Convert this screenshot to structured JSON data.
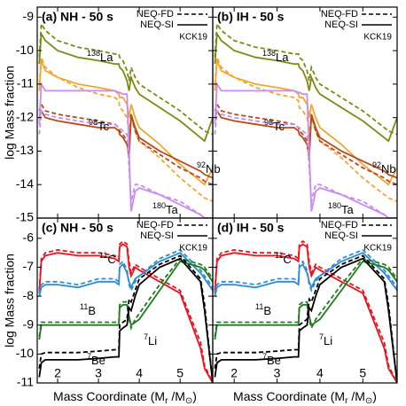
{
  "chart_data": [
    {
      "type": "line",
      "title": "(a) NH - 50 s",
      "ylabel": "log Mass fraction",
      "note": "KCK19",
      "legend": [
        {
          "name": "NEQ-FD",
          "dashed": true
        },
        {
          "name": "NEQ-SI",
          "dashed": false
        }
      ],
      "x": [
        1.55,
        1.6,
        1.7,
        2.0,
        2.5,
        3.0,
        3.4,
        3.5,
        3.52,
        3.6,
        3.7,
        3.75,
        3.8,
        3.9,
        4.0,
        4.5,
        5.0,
        5.5,
        5.6,
        5.8
      ],
      "xlim": [
        1.5,
        5.8
      ],
      "xticks": [
        2,
        3,
        4,
        5
      ],
      "ylim": [
        -15,
        -8.7
      ],
      "yticks": [
        -9,
        -10,
        -11,
        -12,
        -13,
        -14,
        -15
      ],
      "series": [
        {
          "isotope": "138",
          "element": "La",
          "color": "#7d8a14",
          "fd": [
            -10.2,
            -9.2,
            -9.4,
            -9.7,
            -9.9,
            -10.0,
            -10.1,
            -10.1,
            -10.2,
            -10.3,
            -10.6,
            -10.9,
            -10.5,
            -10.8,
            -11.0,
            -11.4,
            -11.8,
            -12.3,
            -12.4,
            -12.5
          ],
          "si": [
            -10.4,
            -9.5,
            -9.7,
            -10.0,
            -10.2,
            -10.3,
            -10.4,
            -10.4,
            -10.5,
            -10.6,
            -10.9,
            -11.2,
            -10.8,
            -11.1,
            -11.3,
            -11.7,
            -12.1,
            -12.6,
            -12.7,
            -12.0
          ]
        },
        {
          "isotope": "92",
          "element": "Nb",
          "color": "#f5a630",
          "fd": [
            -11.0,
            -10.2,
            -10.5,
            -10.8,
            -11.1,
            -11.3,
            -11.4,
            -11.5,
            -11.7,
            -11.8,
            -12.0,
            -12.4,
            -12.0,
            -12.4,
            -12.7,
            -13.2,
            -13.8,
            -14.3,
            -14.4,
            -14.5
          ],
          "si": [
            -11.2,
            -10.3,
            -10.6,
            -10.8,
            -11.0,
            -11.1,
            -11.2,
            -11.3,
            -11.4,
            -11.4,
            -11.6,
            -12.0,
            -11.6,
            -12.0,
            -12.3,
            -12.8,
            -13.4,
            -13.9,
            -14.0,
            -13.5
          ]
        },
        {
          "isotope": "98",
          "element": "Tc",
          "color": "#b84a1c",
          "fd": [
            -11.8,
            -11.6,
            -11.8,
            -11.9,
            -12.0,
            -12.1,
            -12.2,
            -12.3,
            -12.4,
            -12.5,
            -12.7,
            -13.1,
            -11.9,
            -12.4,
            -12.7,
            -13.1,
            -13.5,
            -13.8,
            -13.9,
            -14.0
          ],
          "si": [
            -12.0,
            -11.8,
            -12.0,
            -12.1,
            -12.2,
            -12.3,
            -12.3,
            -12.4,
            -12.5,
            -12.6,
            -12.8,
            -13.2,
            -11.9,
            -12.3,
            -12.6,
            -13.0,
            -13.3,
            -13.6,
            -13.7,
            -13.8
          ]
        },
        {
          "isotope": "180",
          "element": "Ta",
          "color": "#c88cf0",
          "fd": [
            -12.5,
            -11.8,
            -11.9,
            -12.0,
            -12.1,
            -12.2,
            -12.2,
            -12.3,
            -12.3,
            -12.4,
            -12.5,
            -13.5,
            -14.5,
            -14.0,
            -14.0,
            -14.3,
            -14.5,
            -14.9,
            -15.0,
            -15.0
          ],
          "si": [
            -12.2,
            -11.0,
            -11.2,
            -11.2,
            -11.2,
            -11.2,
            -11.2,
            -11.25,
            -11.25,
            -11.3,
            -11.3,
            -13.0,
            -14.8,
            -14.2,
            -14.1,
            -14.3,
            -14.6,
            -14.9,
            -15.0,
            -15.0
          ]
        }
      ]
    },
    {
      "type": "line",
      "title": "(b) IH - 50 s",
      "note": "KCK19",
      "legend": [
        {
          "name": "NEQ-FD",
          "dashed": true
        },
        {
          "name": "NEQ-SI",
          "dashed": false
        }
      ],
      "x": [
        1.55,
        1.6,
        1.7,
        2.0,
        2.5,
        3.0,
        3.4,
        3.5,
        3.52,
        3.6,
        3.7,
        3.75,
        3.8,
        3.9,
        4.0,
        4.5,
        5.0,
        5.5,
        5.6,
        5.8
      ],
      "xlim": [
        1.5,
        5.8
      ],
      "xticks": [
        2,
        3,
        4,
        5
      ],
      "ylim": [
        -15,
        -8.7
      ],
      "yticks": [
        -9,
        -10,
        -11,
        -12,
        -13,
        -14,
        -15
      ],
      "series": [
        {
          "isotope": "138",
          "element": "La",
          "color": "#7d8a14",
          "fd": [
            -10.2,
            -9.2,
            -9.4,
            -9.7,
            -9.9,
            -10.0,
            -10.1,
            -10.1,
            -10.2,
            -10.3,
            -10.6,
            -10.9,
            -10.5,
            -10.8,
            -11.0,
            -11.4,
            -11.8,
            -12.3,
            -12.4,
            -12.5
          ],
          "si": [
            -10.4,
            -9.5,
            -9.7,
            -10.0,
            -10.2,
            -10.3,
            -10.4,
            -10.4,
            -10.5,
            -10.6,
            -10.9,
            -11.2,
            -10.8,
            -11.1,
            -11.3,
            -11.7,
            -12.1,
            -12.6,
            -12.7,
            -12.0
          ]
        },
        {
          "isotope": "92",
          "element": "Nb",
          "color": "#f5a630",
          "fd": [
            -11.0,
            -10.2,
            -10.5,
            -10.8,
            -11.1,
            -11.3,
            -11.4,
            -11.5,
            -11.7,
            -11.8,
            -12.0,
            -12.4,
            -12.0,
            -12.4,
            -12.7,
            -13.2,
            -13.8,
            -14.3,
            -14.4,
            -14.5
          ],
          "si": [
            -11.2,
            -10.3,
            -10.6,
            -10.8,
            -11.0,
            -11.1,
            -11.2,
            -11.3,
            -11.4,
            -11.4,
            -11.6,
            -12.0,
            -11.6,
            -12.0,
            -12.3,
            -12.8,
            -13.4,
            -13.9,
            -14.0,
            -13.5
          ]
        },
        {
          "isotope": "98",
          "element": "Tc",
          "color": "#b84a1c",
          "fd": [
            -11.8,
            -11.6,
            -11.8,
            -11.9,
            -12.0,
            -12.1,
            -12.2,
            -12.3,
            -12.4,
            -12.5,
            -12.7,
            -13.1,
            -11.9,
            -12.4,
            -12.7,
            -13.1,
            -13.5,
            -13.8,
            -13.9,
            -14.0
          ],
          "si": [
            -12.0,
            -11.8,
            -12.0,
            -12.1,
            -12.2,
            -12.3,
            -12.3,
            -12.4,
            -12.5,
            -12.6,
            -12.8,
            -13.2,
            -11.9,
            -12.3,
            -12.6,
            -13.0,
            -13.3,
            -13.6,
            -13.7,
            -13.8
          ]
        },
        {
          "isotope": "180",
          "element": "Ta",
          "color": "#c88cf0",
          "fd": [
            -12.5,
            -11.8,
            -11.9,
            -12.0,
            -12.1,
            -12.2,
            -12.2,
            -12.3,
            -12.3,
            -12.4,
            -12.5,
            -13.5,
            -14.5,
            -14.0,
            -14.0,
            -14.3,
            -14.5,
            -14.9,
            -15.0,
            -15.0
          ],
          "si": [
            -12.2,
            -11.0,
            -11.2,
            -11.2,
            -11.2,
            -11.2,
            -11.2,
            -11.25,
            -11.25,
            -11.3,
            -11.3,
            -13.0,
            -14.8,
            -14.2,
            -14.1,
            -14.3,
            -14.6,
            -14.9,
            -15.0,
            -15.0
          ]
        }
      ]
    },
    {
      "type": "line",
      "title": "(c) NH - 50 s",
      "ylabel": "log Mass fraction",
      "note": "KCK19",
      "xlabel": {
        "main": "Mass Coordinate (M",
        "sub": "r",
        "mid": " /M",
        "sub2": "⊙",
        "end": ")"
      },
      "legend": [
        {
          "name": "NEQ-FD",
          "dashed": true
        },
        {
          "name": "NEQ-SI",
          "dashed": false
        }
      ],
      "x": [
        1.55,
        1.6,
        1.7,
        2.0,
        2.5,
        3.0,
        3.4,
        3.5,
        3.52,
        3.6,
        3.7,
        3.75,
        3.8,
        3.9,
        4.0,
        4.5,
        5.0,
        5.5,
        5.6,
        5.8
      ],
      "xlim": [
        1.5,
        5.8
      ],
      "xticks": [
        2,
        3,
        4,
        5
      ],
      "ylim": [
        -11,
        -5.3
      ],
      "yticks": [
        -6,
        -7,
        -8,
        -9,
        -10,
        -11
      ],
      "series": [
        {
          "isotope": "11",
          "element": "C",
          "color": "#e8141e",
          "fd": [
            -7.8,
            -6.7,
            -6.5,
            -6.4,
            -6.5,
            -6.5,
            -6.6,
            -6.7,
            -6.2,
            -6.1,
            -6.2,
            -6.8,
            -7.2,
            -6.9,
            -7.0,
            -7.4,
            -7.8,
            -9.6,
            -10.4,
            -11.0
          ],
          "si": [
            -7.9,
            -6.8,
            -6.6,
            -6.5,
            -6.6,
            -6.6,
            -6.7,
            -6.8,
            -6.3,
            -6.2,
            -6.3,
            -7.0,
            -7.3,
            -7.0,
            -7.1,
            -7.5,
            -7.9,
            -9.8,
            -10.5,
            -11.0
          ]
        },
        {
          "isotope": "11",
          "element": "B",
          "color": "#2e8cd2",
          "fd": [
            -7.9,
            -7.6,
            -7.5,
            -7.5,
            -7.6,
            -7.4,
            -7.4,
            -7.5,
            -6.9,
            -6.8,
            -7.1,
            -7.6,
            -7.8,
            -7.5,
            -7.3,
            -6.7,
            -6.4,
            -7.1,
            -7.3,
            -7.7
          ],
          "si": [
            -8.0,
            -7.7,
            -7.6,
            -7.6,
            -7.7,
            -7.5,
            -7.5,
            -7.6,
            -7.0,
            -6.9,
            -7.2,
            -7.5,
            -7.7,
            -7.4,
            -7.3,
            -6.8,
            -6.5,
            -7.2,
            -7.4,
            -7.8
          ]
        },
        {
          "isotope": "7",
          "element": "Li",
          "color": "#1f7d1f",
          "fd": [
            -9.4,
            -8.9,
            -8.9,
            -8.9,
            -8.9,
            -8.9,
            -8.9,
            -8.9,
            -8.3,
            -8.2,
            -8.2,
            -8.8,
            -9.1,
            -8.8,
            -8.6,
            -7.6,
            -6.7,
            -6.9,
            -7.0,
            -7.4
          ],
          "si": [
            -9.5,
            -9.0,
            -9.0,
            -9.0,
            -9.0,
            -9.0,
            -9.0,
            -9.0,
            -8.4,
            -8.3,
            -8.3,
            -8.7,
            -9.0,
            -8.9,
            -8.8,
            -7.8,
            -6.8,
            -7.0,
            -7.1,
            -7.5
          ]
        },
        {
          "isotope": "7",
          "element": "Be",
          "color": "#000000",
          "fd": [
            -10.5,
            -10.0,
            -9.95,
            -9.95,
            -9.95,
            -9.9,
            -9.85,
            -9.85,
            -9.0,
            -8.9,
            -8.8,
            -8.1,
            -8.2,
            -7.8,
            -7.4,
            -6.9,
            -6.6,
            -7.4,
            -8.3,
            -11.0
          ],
          "si": [
            -10.8,
            -10.3,
            -10.2,
            -10.2,
            -10.2,
            -10.15,
            -10.1,
            -10.1,
            -9.2,
            -9.1,
            -9.0,
            -8.4,
            -8.5,
            -8.0,
            -7.6,
            -7.0,
            -6.7,
            -7.5,
            -8.5,
            -11.0
          ]
        }
      ]
    },
    {
      "type": "line",
      "title": "(d) IH - 50 s",
      "note": "KCK19",
      "xlabel": {
        "main": "Mass Coordinate (M",
        "sub": "r",
        "mid": " /M",
        "sub2": "⊙",
        "end": ")"
      },
      "legend": [
        {
          "name": "NEQ-FD",
          "dashed": true
        },
        {
          "name": "NEQ-SI",
          "dashed": false
        }
      ],
      "x": [
        1.55,
        1.6,
        1.7,
        2.0,
        2.5,
        3.0,
        3.4,
        3.5,
        3.52,
        3.6,
        3.7,
        3.75,
        3.8,
        3.9,
        4.0,
        4.5,
        5.0,
        5.5,
        5.6,
        5.8
      ],
      "xlim": [
        1.5,
        5.8
      ],
      "xticks": [
        2,
        3,
        4,
        5
      ],
      "ylim": [
        -11,
        -5.3
      ],
      "yticks": [
        -6,
        -7,
        -8,
        -9,
        -10,
        -11
      ],
      "series": [
        {
          "isotope": "11",
          "element": "C",
          "color": "#e8141e",
          "fd": [
            -7.8,
            -6.7,
            -6.5,
            -6.4,
            -6.5,
            -6.5,
            -6.6,
            -6.7,
            -6.2,
            -6.1,
            -6.2,
            -6.8,
            -7.2,
            -6.9,
            -7.0,
            -7.4,
            -7.8,
            -9.6,
            -10.4,
            -11.0
          ],
          "si": [
            -7.9,
            -6.8,
            -6.6,
            -6.5,
            -6.6,
            -6.6,
            -6.7,
            -6.8,
            -6.3,
            -6.2,
            -6.3,
            -7.0,
            -7.3,
            -7.0,
            -7.1,
            -7.5,
            -7.9,
            -9.8,
            -10.5,
            -11.0
          ]
        },
        {
          "isotope": "11",
          "element": "B",
          "color": "#2e8cd2",
          "fd": [
            -7.9,
            -7.6,
            -7.5,
            -7.5,
            -7.6,
            -7.4,
            -7.4,
            -7.5,
            -6.9,
            -6.8,
            -7.1,
            -7.6,
            -7.8,
            -7.5,
            -7.3,
            -6.7,
            -6.4,
            -7.1,
            -7.3,
            -7.7
          ],
          "si": [
            -8.0,
            -7.7,
            -7.6,
            -7.6,
            -7.7,
            -7.5,
            -7.5,
            -7.6,
            -7.0,
            -6.9,
            -7.2,
            -7.5,
            -7.7,
            -7.4,
            -7.3,
            -6.8,
            -6.5,
            -7.2,
            -7.4,
            -7.8
          ]
        },
        {
          "isotope": "7",
          "element": "Li",
          "color": "#1f7d1f",
          "fd": [
            -9.4,
            -8.9,
            -8.9,
            -8.9,
            -8.9,
            -8.9,
            -8.9,
            -8.9,
            -8.3,
            -8.2,
            -8.2,
            -8.8,
            -9.1,
            -8.8,
            -8.6,
            -7.6,
            -6.7,
            -6.9,
            -7.0,
            -7.4
          ],
          "si": [
            -9.5,
            -9.0,
            -9.0,
            -9.0,
            -9.0,
            -9.0,
            -9.0,
            -9.0,
            -8.4,
            -8.3,
            -8.3,
            -8.7,
            -9.0,
            -8.9,
            -8.8,
            -7.8,
            -6.8,
            -7.0,
            -7.1,
            -7.5
          ]
        },
        {
          "isotope": "7",
          "element": "Be",
          "color": "#000000",
          "fd": [
            -10.5,
            -10.0,
            -9.95,
            -9.95,
            -9.95,
            -9.9,
            -9.85,
            -9.85,
            -9.0,
            -8.9,
            -8.8,
            -8.1,
            -8.2,
            -7.8,
            -7.4,
            -6.9,
            -6.6,
            -7.4,
            -8.3,
            -11.0
          ],
          "si": [
            -10.8,
            -10.3,
            -10.2,
            -10.2,
            -10.2,
            -10.15,
            -10.1,
            -10.1,
            -9.2,
            -9.1,
            -9.0,
            -8.4,
            -8.5,
            -8.0,
            -7.6,
            -7.0,
            -6.7,
            -7.5,
            -8.5,
            -11.0
          ]
        }
      ]
    }
  ]
}
